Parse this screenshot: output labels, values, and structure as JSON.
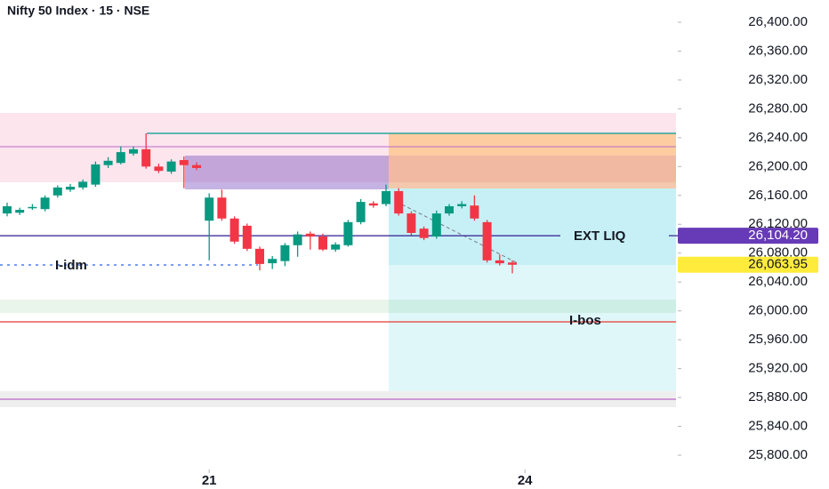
{
  "chart_data": {
    "type": "candlestick",
    "title": "Nifty 50 Index · 15 · NSE",
    "up_color": "#089981",
    "down_color": "#f23645",
    "open": [
      26135,
      26136,
      26143,
      26141,
      26160,
      26168,
      26171,
      26175,
      26202,
      26205,
      26218,
      26224,
      26200,
      26193,
      26209,
      26202,
      26125,
      26157,
      26128,
      26118,
      26086,
      26066,
      26069,
      26091,
      26107,
      26103,
      26085,
      26091,
      26123,
      26149,
      26148,
      26166,
      26135,
      26114,
      26103,
      26135,
      26145,
      26146,
      26123,
      26070,
      26067
    ],
    "high": [
      26150,
      26143,
      26148,
      26160,
      26174,
      26176,
      26182,
      26207,
      26213,
      26228,
      26228,
      26246,
      26204,
      26210,
      26214,
      26206,
      26163,
      26168,
      26131,
      26121,
      26089,
      26076,
      26094,
      26110,
      26110,
      26107,
      26095,
      26126,
      26155,
      26152,
      26175,
      26170,
      26138,
      26117,
      26139,
      26148,
      26152,
      26160,
      26126,
      26078,
      26070
    ],
    "low": [
      26131,
      26133,
      26140,
      26138,
      26157,
      26165,
      26168,
      26172,
      26198,
      26203,
      26215,
      26197,
      26191,
      26190,
      26170,
      26195,
      26070,
      26125,
      26093,
      26083,
      26056,
      26058,
      26062,
      26075,
      26085,
      26083,
      26082,
      26089,
      26120,
      26143,
      26145,
      26132,
      26105,
      26098,
      26100,
      26132,
      26142,
      26125,
      26067,
      26063,
      26052
    ],
    "close": [
      26145,
      26140,
      26144,
      26157,
      26171,
      26172,
      26179,
      26203,
      26208,
      26220,
      26224,
      26200,
      26194,
      26207,
      26202,
      26198,
      26157,
      26128,
      26096,
      26086,
      26065,
      26072,
      26091,
      26106,
      26103,
      26085,
      26092,
      26123,
      26151,
      26146,
      26166,
      26135,
      26108,
      26101,
      26135,
      26145,
      26148,
      26128,
      26070,
      26066,
      26063.95
    ],
    "ylim": [
      25780,
      26420
    ],
    "yticks": [
      {
        "value": 26400,
        "label": "26,400.00"
      },
      {
        "value": 26360,
        "label": "26,360.00"
      },
      {
        "value": 26320,
        "label": "26,320.00"
      },
      {
        "value": 26280,
        "label": "26,280.00"
      },
      {
        "value": 26240,
        "label": "26,240.00"
      },
      {
        "value": 26200,
        "label": "26,200.00"
      },
      {
        "value": 26160,
        "label": "26,160.00"
      },
      {
        "value": 26120,
        "label": "26,120.00"
      },
      {
        "value": 26080,
        "label": "26,080.00"
      },
      {
        "value": 26040,
        "label": "26,040.00"
      },
      {
        "value": 26000,
        "label": "26,000.00"
      },
      {
        "value": 25960,
        "label": "25,960.00"
      },
      {
        "value": 25920,
        "label": "25,920.00"
      },
      {
        "value": 25880,
        "label": "25,880.00"
      },
      {
        "value": 25840,
        "label": "25,840.00"
      },
      {
        "value": 25800,
        "label": "25,800.00"
      }
    ],
    "xticks": [
      {
        "value": 16,
        "label": "21"
      },
      {
        "value": 41,
        "label": "24"
      }
    ],
    "price_labels": [
      {
        "value": 26104.2,
        "label": "26,104.20",
        "color": "#673ab7"
      },
      {
        "value": 26063.95,
        "label": "26,063.95",
        "color": "#ffeb3b"
      }
    ],
    "annotations": [
      "EXT LIQ",
      "I-idm",
      "I-bos"
    ]
  }
}
